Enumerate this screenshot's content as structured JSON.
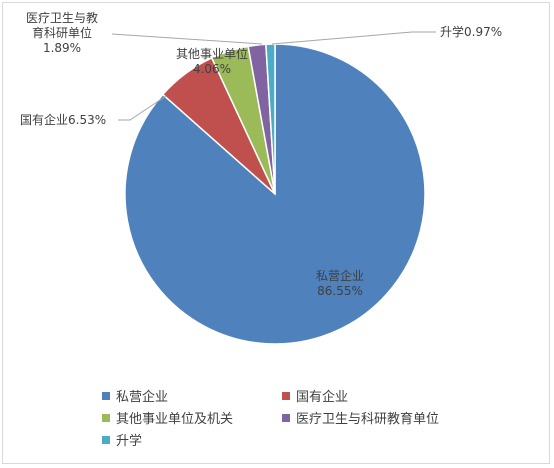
{
  "chart_data": {
    "type": "pie",
    "title": "",
    "slices": [
      {
        "name": "私营企业",
        "value": 86.55,
        "color": "#4f81bd",
        "label_lines": [
          "私营企业",
          "86.55%"
        ],
        "legend": "私营企业"
      },
      {
        "name": "国有企业",
        "value": 6.53,
        "color": "#c0504d",
        "label_lines": [
          "国有企业6.53%"
        ],
        "legend": "国有企业"
      },
      {
        "name": "其他事业单位",
        "value": 4.06,
        "color": "#9bbb59",
        "label_lines": [
          "其他事业单位",
          "4.06%"
        ],
        "legend": "其他事业单位及机关"
      },
      {
        "name": "医疗卫生与教育科研单位",
        "value": 1.89,
        "color": "#8064a2",
        "label_lines": [
          "医疗卫生与教",
          "育科研单位",
          "1.89%"
        ],
        "legend": "医疗卫生与科研教育单位"
      },
      {
        "name": "升学",
        "value": 0.97,
        "color": "#4bacc6",
        "label_lines": [
          "升学0.97%"
        ],
        "legend": "升学"
      }
    ],
    "legend_position": "bottom"
  }
}
